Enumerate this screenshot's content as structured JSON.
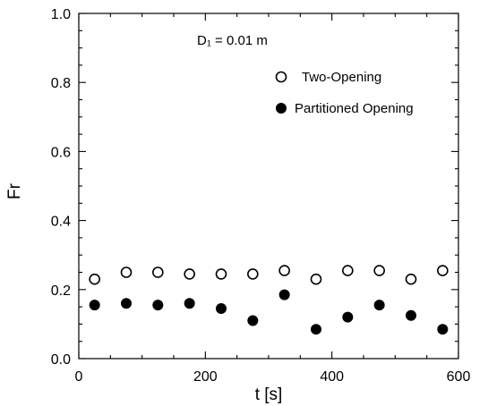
{
  "chart_data": {
    "type": "scatter",
    "xlabel": "t [s]",
    "ylabel": "Fr",
    "xlim": [
      0,
      600
    ],
    "ylim": [
      0.0,
      1.0
    ],
    "x_ticks": [
      "0",
      "200",
      "400",
      "600"
    ],
    "y_ticks": [
      "0.0",
      "0.2",
      "0.4",
      "0.6",
      "0.8",
      "1.0"
    ],
    "x_tick_values": [
      0,
      200,
      400,
      600
    ],
    "y_tick_values": [
      0.0,
      0.2,
      0.4,
      0.6,
      0.8,
      1.0
    ],
    "x_minor_step": 50,
    "y_minor_step": 0.05,
    "grid": false,
    "annotation": "D₁ = 0.01 m",
    "legend_position": "top-right",
    "series": [
      {
        "name": "Two-Opening",
        "marker": "open-circle",
        "x": [
          25,
          75,
          125,
          175,
          225,
          275,
          325,
          375,
          425,
          475,
          525,
          575
        ],
        "y": [
          0.23,
          0.25,
          0.25,
          0.245,
          0.245,
          0.245,
          0.255,
          0.23,
          0.255,
          0.255,
          0.23,
          0.255
        ]
      },
      {
        "name": "Partitioned Opening",
        "marker": "filled-circle",
        "x": [
          25,
          75,
          125,
          175,
          225,
          275,
          325,
          375,
          425,
          475,
          525,
          575
        ],
        "y": [
          0.155,
          0.16,
          0.155,
          0.16,
          0.145,
          0.11,
          0.185,
          0.085,
          0.12,
          0.155,
          0.125,
          0.085
        ]
      }
    ],
    "colors": {
      "axis": "#000000",
      "marker": "#000000",
      "background": "#ffffff"
    }
  }
}
